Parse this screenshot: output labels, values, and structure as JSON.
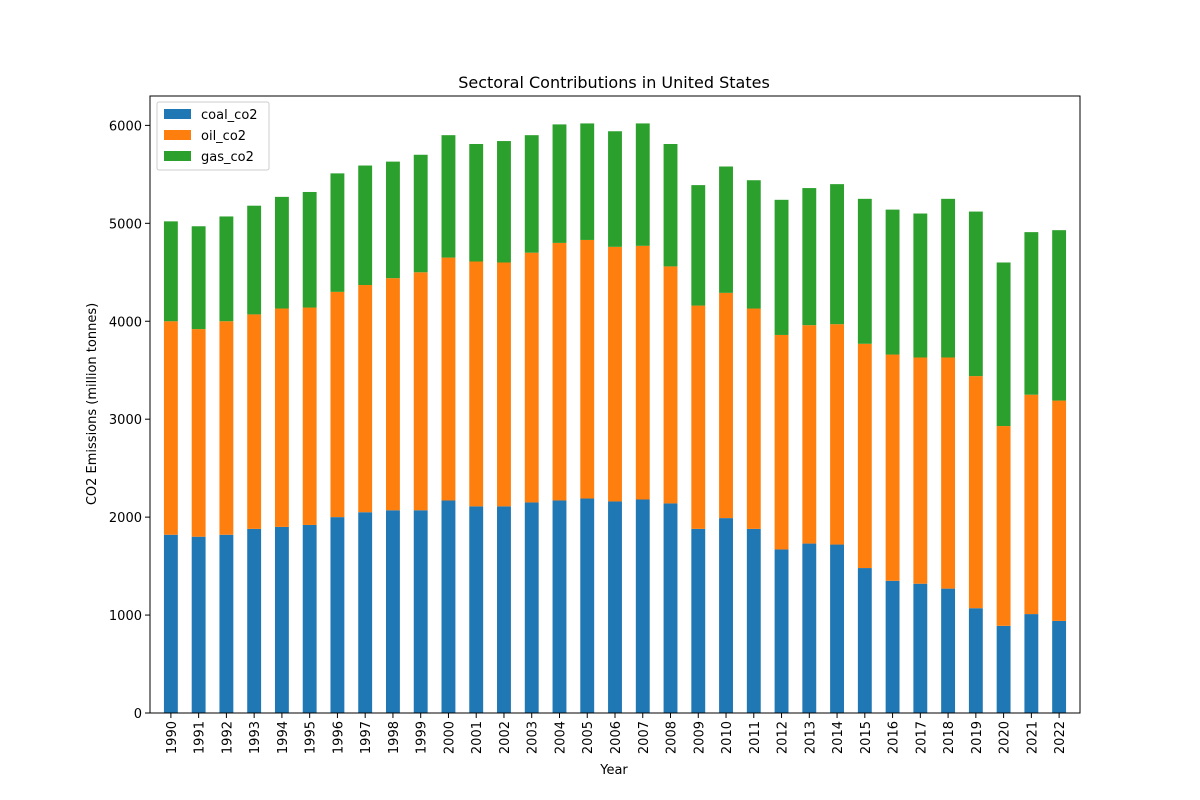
{
  "chart_data": {
    "type": "bar",
    "stacked": true,
    "title": "Sectoral Contributions in United States",
    "xlabel": "Year",
    "ylabel": "CO2 Emissions (million tonnes)",
    "ylim": [
      0,
      6300
    ],
    "yticks": [
      0,
      1000,
      2000,
      3000,
      4000,
      5000,
      6000
    ],
    "grid": false,
    "legend_position": "top-left",
    "categories": [
      "1990",
      "1991",
      "1992",
      "1993",
      "1994",
      "1995",
      "1996",
      "1997",
      "1998",
      "1999",
      "2000",
      "2001",
      "2002",
      "2003",
      "2004",
      "2005",
      "2006",
      "2007",
      "2008",
      "2009",
      "2010",
      "2011",
      "2012",
      "2013",
      "2014",
      "2015",
      "2016",
      "2017",
      "2018",
      "2019",
      "2020",
      "2021",
      "2022"
    ],
    "series": [
      {
        "name": "coal_co2",
        "color": "#1f77b4",
        "values": [
          1820,
          1800,
          1820,
          1880,
          1900,
          1920,
          2000,
          2050,
          2070,
          2070,
          2170,
          2110,
          2110,
          2150,
          2170,
          2190,
          2160,
          2180,
          2140,
          1880,
          1990,
          1880,
          1670,
          1730,
          1720,
          1480,
          1350,
          1320,
          1270,
          1070,
          890,
          1010,
          940
        ]
      },
      {
        "name": "oil_co2",
        "color": "#ff7f0e",
        "values": [
          2180,
          2120,
          2180,
          2190,
          2230,
          2220,
          2300,
          2320,
          2370,
          2430,
          2480,
          2500,
          2490,
          2550,
          2630,
          2640,
          2600,
          2590,
          2420,
          2280,
          2300,
          2250,
          2190,
          2230,
          2250,
          2290,
          2310,
          2310,
          2360,
          2370,
          2040,
          2240,
          2250
        ]
      },
      {
        "name": "gas_co2",
        "color": "#2ca02c",
        "values": [
          1020,
          1050,
          1070,
          1110,
          1140,
          1180,
          1210,
          1220,
          1190,
          1200,
          1250,
          1200,
          1240,
          1200,
          1210,
          1190,
          1180,
          1250,
          1250,
          1230,
          1290,
          1310,
          1380,
          1400,
          1430,
          1480,
          1480,
          1470,
          1620,
          1680,
          1670,
          1660,
          1740
        ]
      }
    ]
  }
}
